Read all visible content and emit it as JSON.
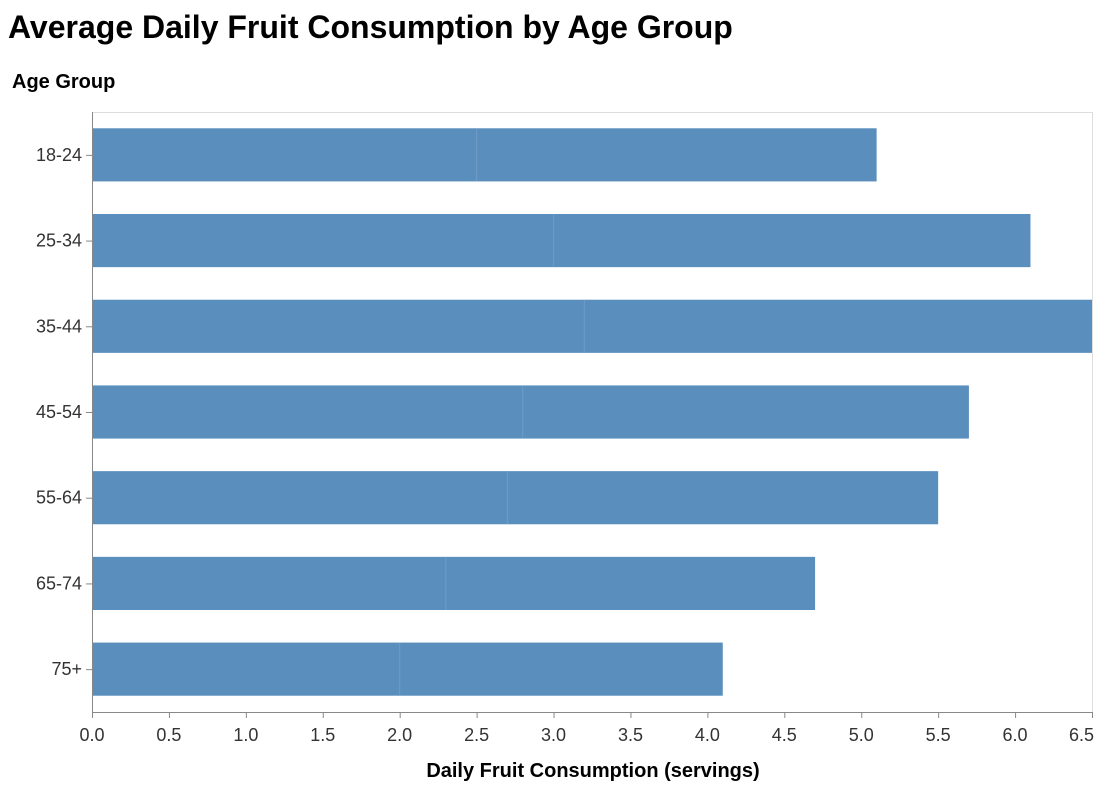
{
  "chart_data": {
    "type": "bar",
    "orientation": "horizontal",
    "stacked": true,
    "title": "Average Daily Fruit Consumption by Age Group",
    "xlabel": "Daily Fruit Consumption (servings)",
    "ylabel": "Age Group",
    "xlim": [
      0,
      6.5
    ],
    "x_ticks": [
      "0.0",
      "0.5",
      "1.0",
      "1.5",
      "2.0",
      "2.5",
      "3.0",
      "3.5",
      "4.0",
      "4.5",
      "5.0",
      "5.5",
      "6.0",
      "6.5"
    ],
    "categories": [
      "18-24",
      "25-34",
      "35-44",
      "45-54",
      "55-64",
      "65-74",
      "75+"
    ],
    "series": [
      {
        "values": [
          2.5,
          3.0,
          3.2,
          2.8,
          2.7,
          2.3,
          2.0
        ]
      },
      {
        "values": [
          2.6,
          3.1,
          3.3,
          2.9,
          2.8,
          2.4,
          2.1
        ]
      }
    ],
    "grid": false,
    "legend": "none",
    "colors": {
      "bar": "#5a8fbd",
      "segment_divider": "#6e9cc6"
    }
  }
}
